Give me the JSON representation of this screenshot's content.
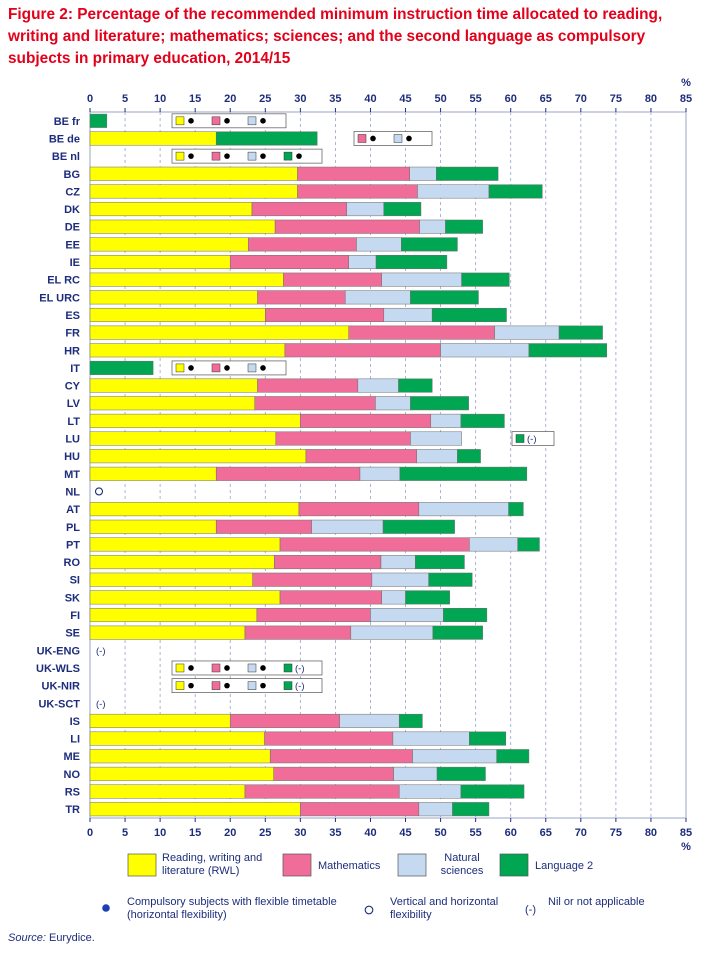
{
  "title": "Figure 2: Percentage of the recommended minimum instruction time allocated to reading, writing and literature; mathematics; sciences; and the second language as compulsory subjects in primary education, 2014/15",
  "unit_label": "%",
  "source_label": "Source:",
  "source_value": " Eurydice.",
  "colors": {
    "rwl": "#ffff00",
    "math": "#f06d9a",
    "sci": "#c5d9f1",
    "lang": "#00a651",
    "axis": "#1d2d7c",
    "grid": "#9aa3c8",
    "dot": "#1e3fb4"
  },
  "legend": {
    "rwl": "Reading, writing and literature (RWL)",
    "math": "Mathematics",
    "sci": "Natural sciences",
    "lang": "Language 2",
    "flex_h": "Compulsory subjects with flexible timetable (horizontal flexibility)",
    "flex_vh": "Vertical and horizontal flexibility",
    "nil_symbol": "(-)",
    "nil": "Nil or not applicable"
  },
  "chart_data": {
    "type": "bar",
    "orientation": "horizontal",
    "stacked": true,
    "title": "Figure 2: Percentage of the recommended minimum instruction time allocated to reading, writing and literature; mathematics; sciences; and the second language as compulsory subjects in primary education, 2014/15",
    "xlim": [
      0,
      85
    ],
    "xticks": [
      0,
      5,
      10,
      15,
      20,
      25,
      30,
      35,
      40,
      45,
      50,
      55,
      60,
      65,
      70,
      75,
      80,
      85
    ],
    "grid": true,
    "series_names": [
      "Reading, writing and literature (RWL)",
      "Mathematics",
      "Natural sciences",
      "Language 2"
    ],
    "categories": [
      "BE fr",
      "BE de",
      "BE nl",
      "BG",
      "CZ",
      "DK",
      "DE",
      "EE",
      "IE",
      "EL RC",
      "EL URC",
      "ES",
      "FR",
      "HR",
      "IT",
      "CY",
      "LV",
      "LT",
      "LU",
      "HU",
      "MT",
      "NL",
      "AT",
      "PL",
      "PT",
      "RO",
      "SI",
      "SK",
      "FI",
      "SE",
      "UK-ENG",
      "UK-WLS",
      "UK-NIR",
      "UK-SCT",
      "IS",
      "LI",
      "ME",
      "NO",
      "RS",
      "TR"
    ],
    "values": {
      "rwl": [
        0,
        18,
        0,
        29.6,
        29.6,
        23.1,
        26.4,
        22.6,
        20,
        27.6,
        23.9,
        25,
        36.9,
        27.8,
        0,
        23.9,
        23.5,
        30,
        26.5,
        30.8,
        18,
        0,
        29.8,
        18,
        27.1,
        26.3,
        23.2,
        27.1,
        23.8,
        22.1,
        0,
        0,
        0,
        0,
        20,
        24.9,
        25.7,
        26.2,
        22.1,
        30
      ],
      "math": [
        0,
        0,
        0,
        16,
        17.1,
        13.5,
        20.6,
        15.4,
        16.9,
        14,
        12.5,
        16.9,
        20.8,
        22.2,
        0,
        14.3,
        17.2,
        18.6,
        19.2,
        15.8,
        20.5,
        0,
        17.1,
        13.6,
        27,
        15.2,
        17,
        14.5,
        16.2,
        15.1,
        0,
        0,
        0,
        0,
        15.6,
        18.3,
        20.3,
        17.1,
        22,
        16.9
      ],
      "sci": [
        0,
        0,
        0,
        3.8,
        10.2,
        5.3,
        3.7,
        6.4,
        3.9,
        11.4,
        9.3,
        6.9,
        9.2,
        12.6,
        0,
        5.8,
        5,
        4.3,
        7.3,
        5.8,
        5.7,
        0,
        12.8,
        10.2,
        6.9,
        4.9,
        8.1,
        3.4,
        10.4,
        11.7,
        0,
        0,
        0,
        0,
        8.5,
        10.9,
        12,
        6.2,
        8.8,
        4.8
      ],
      "lang": [
        2.4,
        14.4,
        0,
        8.8,
        7.6,
        5.3,
        5.3,
        8,
        10.1,
        6.8,
        9.7,
        10.6,
        6.2,
        11.1,
        9,
        4.8,
        8.3,
        6.2,
        0,
        3.3,
        18.1,
        0,
        2.1,
        10.2,
        3.1,
        7,
        6.2,
        6.3,
        6.2,
        7.1,
        0,
        0,
        0,
        0,
        3.3,
        5.2,
        4.6,
        6.9,
        9,
        5.2
      ]
    },
    "annotations": [
      {
        "category": "BE fr",
        "items": [
          "rwl-flex",
          "math-flex",
          "sci-flex"
        ]
      },
      {
        "category": "BE de",
        "items": [
          "math-flex",
          "sci-flex"
        ]
      },
      {
        "category": "BE nl",
        "items": [
          "rwl-flex",
          "math-flex",
          "sci-flex",
          "lang-flex"
        ]
      },
      {
        "category": "IT",
        "items": [
          "rwl-flex",
          "math-flex",
          "sci-flex"
        ]
      },
      {
        "category": "LU",
        "items": [
          "lang-nil"
        ]
      },
      {
        "category": "NL",
        "items": [
          "vh-flex"
        ]
      },
      {
        "category": "UK-ENG",
        "items": [
          "nil"
        ]
      },
      {
        "category": "UK-WLS",
        "items": [
          "rwl-flex",
          "math-flex",
          "sci-flex",
          "lang-nil"
        ]
      },
      {
        "category": "UK-NIR",
        "items": [
          "rwl-flex",
          "math-flex",
          "sci-flex",
          "lang-nil"
        ]
      },
      {
        "category": "UK-SCT",
        "items": [
          "nil"
        ]
      }
    ]
  }
}
